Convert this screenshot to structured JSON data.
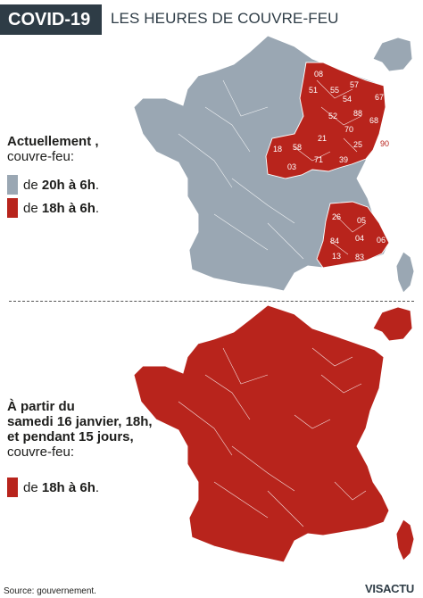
{
  "header": {
    "tag": "COVID-19",
    "title": "LES HEURES DE COUVRE-FEU"
  },
  "top_legend": {
    "title": "Actuellement",
    "title_suffix": " ,",
    "subtitle": "couvre-feu:",
    "items": [
      {
        "prefix": "de ",
        "bold": "20h à 6h",
        "suffix": ".",
        "color": "#9aa7b3"
      },
      {
        "prefix": "de ",
        "bold": "18h à 6h",
        "suffix": ".",
        "color": "#b8241c"
      }
    ]
  },
  "bottom_legend": {
    "title_lines": [
      "À partir du",
      "samedi 16 janvier, 18h,",
      "et pendant 15 jours,"
    ],
    "subtitle": "couvre-feu:",
    "items": [
      {
        "prefix": "de ",
        "bold": "18h à 6h",
        "suffix": ".",
        "color": "#b8241c"
      }
    ]
  },
  "departments": {
    "east": [
      "08",
      "51",
      "55",
      "57",
      "54",
      "67",
      "52",
      "88",
      "68",
      "70",
      "21",
      "25",
      "39",
      "71",
      "58",
      "18",
      "03",
      "90"
    ],
    "southeast": [
      "26",
      "05",
      "84",
      "04",
      "06",
      "13",
      "83"
    ]
  },
  "colors": {
    "grey": "#9aa7b3",
    "red": "#b8241c",
    "header": "#2e3c46"
  },
  "footer": {
    "source": "Source: gouvernement.",
    "logo": "VISACTU"
  }
}
